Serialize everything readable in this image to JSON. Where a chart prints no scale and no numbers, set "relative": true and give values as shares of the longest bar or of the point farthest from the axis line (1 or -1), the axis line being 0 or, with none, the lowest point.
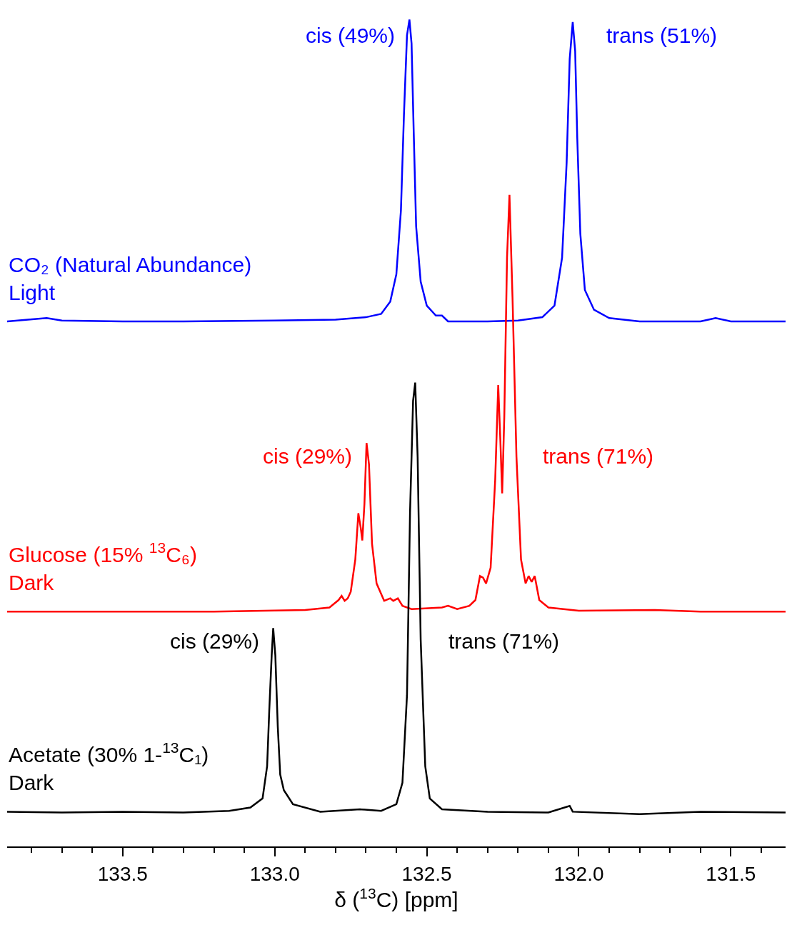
{
  "chart_data": {
    "type": "line",
    "relative": true,
    "xlabel": "δ ($^{13}$C) [ppm]",
    "xlim": [
      133.88,
      131.32
    ],
    "xticks": [
      {
        "value": 133.8,
        "label": null
      },
      {
        "value": 133.7,
        "label": null
      },
      {
        "value": 133.6,
        "label": null
      },
      133.5,
      {
        "value": 133.4,
        "label": null
      },
      {
        "value": 133.3,
        "label": null
      },
      {
        "value": 133.2,
        "label": null
      },
      {
        "value": 133.1,
        "label": null
      },
      {
        "value": 133,
        "label": "133.0"
      },
      {
        "value": 132.9,
        "label": null
      },
      {
        "value": 132.8,
        "label": null
      },
      {
        "value": 132.7,
        "label": null
      },
      {
        "value": 132.6,
        "label": null
      },
      132.5,
      {
        "value": 132.4,
        "label": null
      },
      {
        "value": 132.3,
        "label": null
      },
      {
        "value": 132.2,
        "label": null
      },
      {
        "value": 132.1,
        "label": null
      },
      {
        "value": 132,
        "label": "132.0"
      },
      {
        "value": 131.9,
        "label": null
      },
      {
        "value": 131.8,
        "label": null
      },
      {
        "value": 131.7,
        "label": null
      },
      {
        "value": 131.6,
        "label": null
      },
      131.5,
      {
        "value": 131.4,
        "label": null
      }
    ],
    "legend": false,
    "marker": "none",
    "line_style": "solid",
    "series": [
      {
        "name": "CO₂ (Natural Abundance)\nLight",
        "color": "#0000ff",
        "x": [
          133.88,
          133.75,
          133.7,
          133.5,
          133.3,
          133.0,
          132.8,
          132.7,
          132.65,
          132.62,
          132.6,
          132.585,
          132.575,
          132.565,
          132.557,
          132.55,
          132.543,
          132.535,
          132.52,
          132.5,
          132.47,
          132.45,
          132.43,
          132.3,
          132.2,
          132.12,
          132.08,
          132.055,
          132.04,
          132.03,
          132.02,
          132.012,
          132.005,
          131.995,
          131.98,
          131.95,
          131.9,
          131.8,
          131.6,
          131.55,
          131.5,
          131.32
        ],
        "values": [
          0.635,
          0.639,
          0.636,
          0.635,
          0.635,
          0.636,
          0.637,
          0.64,
          0.644,
          0.659,
          0.692,
          0.769,
          0.885,
          0.981,
          1.0,
          0.971,
          0.865,
          0.75,
          0.683,
          0.654,
          0.642,
          0.642,
          0.635,
          0.635,
          0.636,
          0.64,
          0.654,
          0.712,
          0.827,
          0.952,
          0.997,
          0.962,
          0.856,
          0.741,
          0.673,
          0.649,
          0.639,
          0.635,
          0.635,
          0.639,
          0.635,
          0.635
        ]
      },
      {
        "name": "Glucose (15% $^{13}$C₆)\nDark",
        "color": "#ff0000",
        "x": [
          133.88,
          133.5,
          133.2,
          132.9,
          132.82,
          132.79,
          132.78,
          132.77,
          132.76,
          132.75,
          132.735,
          132.725,
          132.717,
          132.712,
          132.705,
          132.698,
          132.69,
          132.68,
          132.665,
          132.64,
          132.62,
          132.61,
          132.595,
          132.58,
          132.55,
          132.45,
          132.43,
          132.4,
          132.36,
          132.34,
          132.325,
          132.315,
          132.305,
          132.29,
          132.275,
          132.265,
          132.258,
          132.252,
          132.245,
          132.236,
          132.228,
          132.218,
          132.205,
          132.19,
          132.175,
          132.165,
          132.155,
          132.145,
          132.13,
          132.1,
          132.0,
          131.75,
          131.6,
          131.32
        ],
        "values": [
          0.284,
          0.284,
          0.284,
          0.286,
          0.289,
          0.298,
          0.303,
          0.297,
          0.3,
          0.308,
          0.347,
          0.403,
          0.385,
          0.37,
          0.414,
          0.488,
          0.462,
          0.366,
          0.318,
          0.297,
          0.3,
          0.297,
          0.3,
          0.291,
          0.287,
          0.289,
          0.291,
          0.287,
          0.291,
          0.298,
          0.327,
          0.325,
          0.318,
          0.337,
          0.443,
          0.558,
          0.491,
          0.427,
          0.52,
          0.712,
          0.788,
          0.664,
          0.471,
          0.347,
          0.318,
          0.327,
          0.32,
          0.327,
          0.298,
          0.289,
          0.285,
          0.286,
          0.284,
          0.284
        ]
      },
      {
        "name": "Acetate (30% 1-$^{13}$C₁)\nDark",
        "color": "#000000",
        "x": [
          133.88,
          133.7,
          133.5,
          133.3,
          133.15,
          133.08,
          133.04,
          133.025,
          133.018,
          133.01,
          133.005,
          132.998,
          132.99,
          132.982,
          132.97,
          132.94,
          132.85,
          132.72,
          132.65,
          132.6,
          132.58,
          132.565,
          132.555,
          132.545,
          132.538,
          132.53,
          132.52,
          132.505,
          132.49,
          132.45,
          132.3,
          132.1,
          132.03,
          132.02,
          131.8,
          131.6,
          131.32
        ],
        "values": [
          0.042,
          0.041,
          0.042,
          0.041,
          0.043,
          0.047,
          0.058,
          0.097,
          0.164,
          0.231,
          0.264,
          0.231,
          0.145,
          0.087,
          0.068,
          0.051,
          0.042,
          0.045,
          0.043,
          0.051,
          0.077,
          0.183,
          0.404,
          0.539,
          0.561,
          0.471,
          0.25,
          0.097,
          0.058,
          0.045,
          0.042,
          0.041,
          0.049,
          0.042,
          0.039,
          0.042,
          0.041
        ]
      }
    ],
    "annotations": [
      "cis (49%)",
      "trans (51%)",
      "cis (29%)",
      "trans (71%)",
      "cis (29%)",
      "trans (71%)"
    ]
  }
}
